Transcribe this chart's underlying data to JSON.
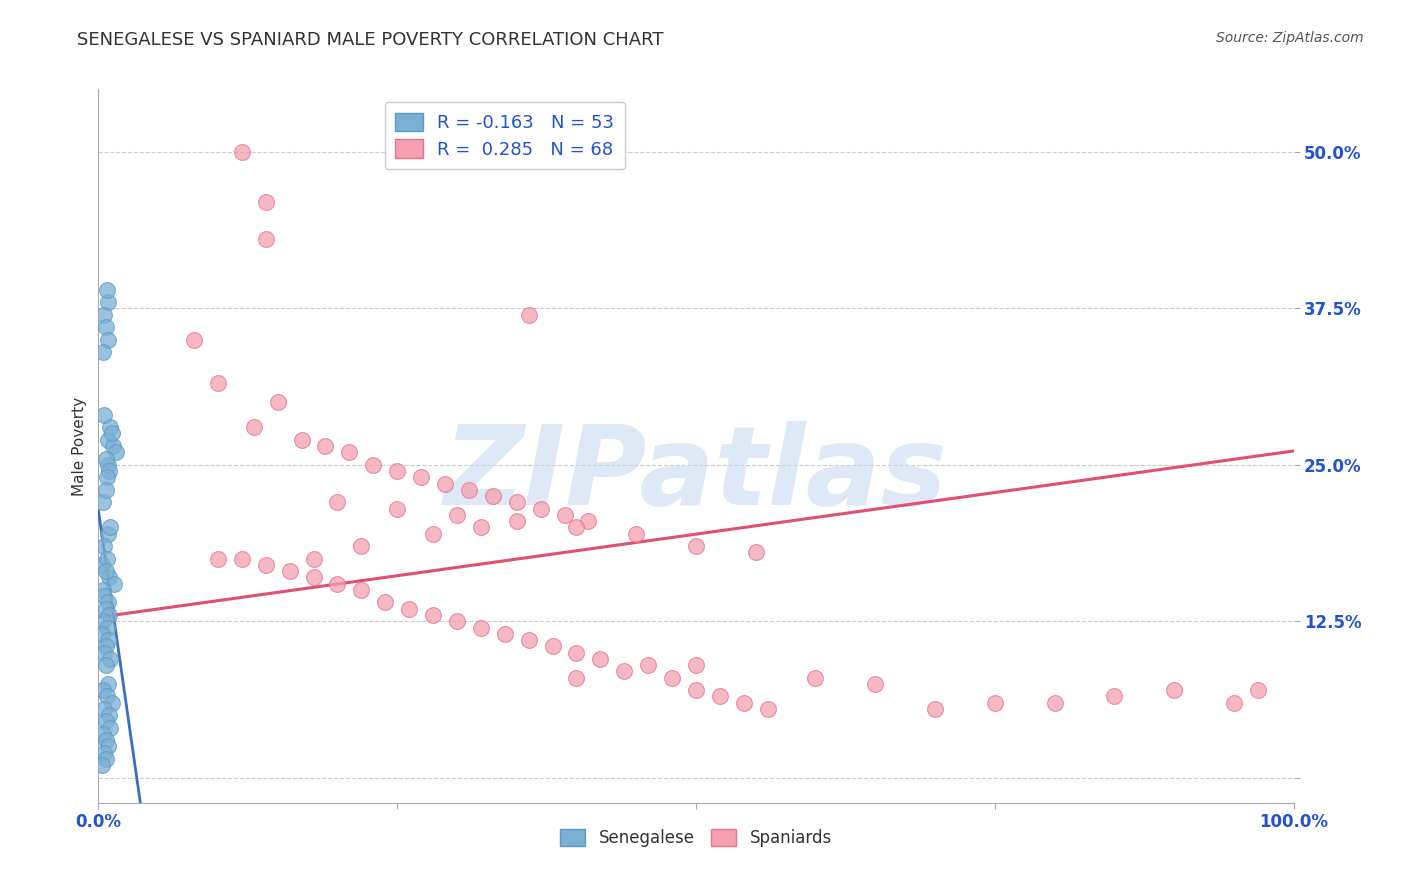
{
  "title": "SENEGALESE VS SPANIARD MALE POVERTY CORRELATION CHART",
  "source": "Source: ZipAtlas.com",
  "ylabel": "Male Poverty",
  "xlim": [
    0.0,
    1.0
  ],
  "ylim": [
    -0.02,
    0.55
  ],
  "yticks": [
    0.0,
    0.125,
    0.25,
    0.375,
    0.5
  ],
  "ytick_labels": [
    "",
    "12.5%",
    "25.0%",
    "37.5%",
    "50.0%"
  ],
  "xticks": [
    0.0,
    0.25,
    0.5,
    0.75,
    1.0
  ],
  "xtick_labels": [
    "0.0%",
    "",
    "",
    "",
    "100.0%"
  ],
  "senegalese_color": "#7bafd4",
  "spaniard_color": "#f4a0b0",
  "senegalese_edge": "#5a9ac7",
  "spaniard_edge": "#e87090",
  "blue_line_color": "#3a6fbd",
  "pink_line_color": "#e05070",
  "watermark": "ZIPatlas",
  "watermark_color": "#c5d8f0",
  "background_color": "#ffffff",
  "title_fontsize": 13,
  "axis_label_fontsize": 11,
  "tick_fontsize": 12,
  "source_fontsize": 10,
  "senegalese_x": [
    0.008,
    0.01,
    0.012,
    0.005,
    0.015,
    0.008,
    0.006,
    0.009,
    0.004,
    0.007,
    0.011,
    0.006,
    0.008,
    0.01,
    0.005,
    0.003,
    0.007,
    0.009,
    0.013,
    0.006,
    0.004,
    0.005,
    0.008,
    0.006,
    0.009,
    0.004,
    0.007,
    0.003,
    0.008,
    0.006,
    0.005,
    0.01,
    0.006,
    0.008,
    0.004,
    0.007,
    0.011,
    0.005,
    0.009,
    0.006,
    0.01,
    0.004,
    0.006,
    0.008,
    0.005,
    0.006,
    0.003,
    0.008,
    0.007,
    0.005,
    0.006,
    0.008,
    0.004
  ],
  "senegalese_y": [
    0.27,
    0.28,
    0.265,
    0.29,
    0.26,
    0.25,
    0.255,
    0.245,
    0.22,
    0.24,
    0.275,
    0.23,
    0.195,
    0.2,
    0.185,
    0.17,
    0.175,
    0.16,
    0.155,
    0.165,
    0.15,
    0.145,
    0.14,
    0.135,
    0.13,
    0.125,
    0.12,
    0.115,
    0.11,
    0.105,
    0.1,
    0.095,
    0.09,
    0.075,
    0.07,
    0.065,
    0.06,
    0.055,
    0.05,
    0.045,
    0.04,
    0.035,
    0.03,
    0.025,
    0.02,
    0.015,
    0.01,
    0.38,
    0.39,
    0.37,
    0.36,
    0.35,
    0.34
  ],
  "spaniard_x": [
    0.12,
    0.14,
    0.14,
    0.36,
    0.1,
    0.08,
    0.15,
    0.13,
    0.17,
    0.19,
    0.21,
    0.23,
    0.25,
    0.27,
    0.29,
    0.31,
    0.33,
    0.35,
    0.37,
    0.39,
    0.41,
    0.2,
    0.25,
    0.3,
    0.35,
    0.4,
    0.45,
    0.5,
    0.55,
    0.18,
    0.22,
    0.28,
    0.32,
    0.1,
    0.12,
    0.14,
    0.16,
    0.18,
    0.2,
    0.22,
    0.24,
    0.26,
    0.28,
    0.3,
    0.32,
    0.34,
    0.36,
    0.38,
    0.4,
    0.42,
    0.44,
    0.46,
    0.48,
    0.5,
    0.52,
    0.54,
    0.56,
    0.6,
    0.65,
    0.7,
    0.75,
    0.8,
    0.85,
    0.9,
    0.95,
    0.97,
    0.4,
    0.5
  ],
  "spaniard_y": [
    0.5,
    0.46,
    0.43,
    0.37,
    0.315,
    0.35,
    0.3,
    0.28,
    0.27,
    0.265,
    0.26,
    0.25,
    0.245,
    0.24,
    0.235,
    0.23,
    0.225,
    0.22,
    0.215,
    0.21,
    0.205,
    0.22,
    0.215,
    0.21,
    0.205,
    0.2,
    0.195,
    0.185,
    0.18,
    0.175,
    0.185,
    0.195,
    0.2,
    0.175,
    0.175,
    0.17,
    0.165,
    0.16,
    0.155,
    0.15,
    0.14,
    0.135,
    0.13,
    0.125,
    0.12,
    0.115,
    0.11,
    0.105,
    0.1,
    0.095,
    0.085,
    0.09,
    0.08,
    0.07,
    0.065,
    0.06,
    0.055,
    0.08,
    0.075,
    0.055,
    0.06,
    0.06,
    0.065,
    0.07,
    0.06,
    0.07,
    0.08,
    0.09
  ]
}
